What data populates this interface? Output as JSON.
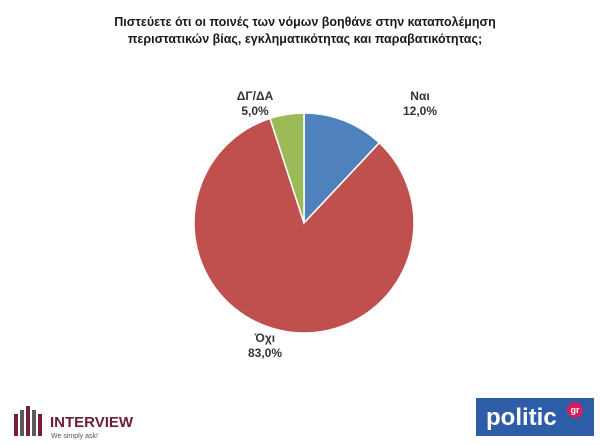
{
  "chart_data": {
    "type": "pie",
    "title": "Πιστεύετε ότι οι ποινές των νόμων βοηθάνε στην καταπολέμηση περιστατικών βίας, εγκληματικότητας και παραβατικότητας;",
    "categories": [
      "Ναι",
      "Όχι",
      "ΔΓ/ΔΑ"
    ],
    "values": [
      12,
      83,
      5
    ],
    "value_labels": [
      "12,0%",
      "83,0%",
      "5,0%"
    ],
    "colors": [
      "#4f81bd",
      "#c0504d",
      "#9bbb59"
    ]
  },
  "footer": {
    "left_logo": "INTERVIEW",
    "left_slogan": "We simply ask!",
    "right_logo": "politic",
    "right_badge": "gr"
  }
}
